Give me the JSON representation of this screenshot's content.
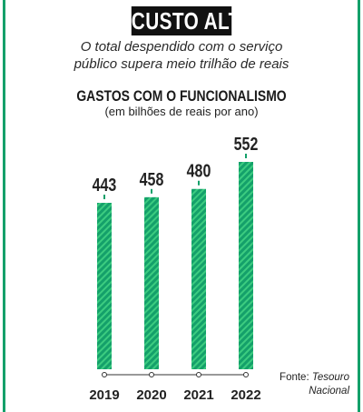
{
  "header": {
    "badge": "CUSTO ALTO",
    "subtitle_line1": "O total despendido com o serviço",
    "subtitle_line2": "público supera meio trilhão de reais"
  },
  "colors": {
    "accent": "#14a06a",
    "bar_stripe": "#2fbf73",
    "badge_bg": "#111111"
  },
  "source": {
    "label": "Fonte:",
    "name_line1": "Tesouro",
    "name_line2": "Nacional"
  },
  "chart_data": {
    "type": "bar",
    "title": "GASTOS COM O FUNCIONALISMO",
    "subtitle": "(em bilhões de reais por ano)",
    "categories": [
      "2019",
      "2020",
      "2021",
      "2022"
    ],
    "values": [
      443,
      458,
      480,
      552
    ],
    "ylim": [
      0,
      552
    ],
    "grid": false,
    "legend": "none",
    "bar_fill": "green diagonal stripes"
  }
}
